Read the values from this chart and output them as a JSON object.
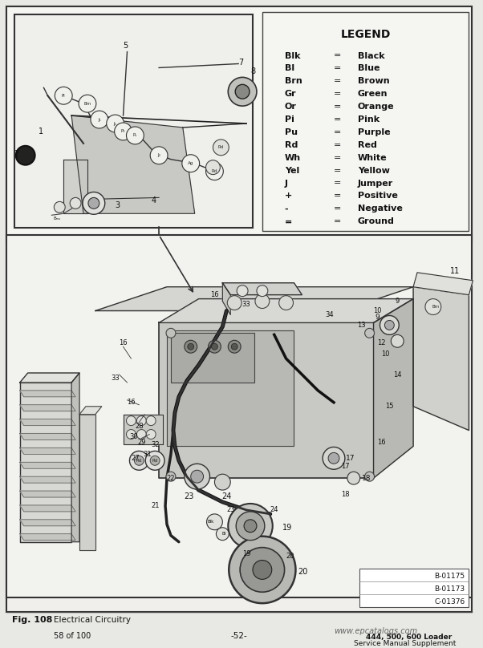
{
  "page_bg": "#e8e8e4",
  "content_bg": "#f0efeb",
  "white": "#ffffff",
  "border_dark": "#222222",
  "border_mid": "#555555",
  "border_light": "#888888",
  "diagram_bg": "#dcdcdc",
  "legend_title": "LEGEND",
  "legend_items": [
    [
      "Blk",
      "=",
      "Black"
    ],
    [
      "Bl",
      "=",
      "Blue"
    ],
    [
      "Brn",
      "=",
      "Brown"
    ],
    [
      "Gr",
      "=",
      "Green"
    ],
    [
      "Or",
      "=",
      "Orange"
    ],
    [
      "Pi",
      "=",
      "Pink"
    ],
    [
      "Pu",
      "=",
      "Purple"
    ],
    [
      "Rd",
      "=",
      "Red"
    ],
    [
      "Wh",
      "=",
      "White"
    ],
    [
      "Yel",
      "=",
      "Yellow"
    ],
    [
      "J",
      "=",
      "Jumper"
    ],
    [
      "+",
      "=",
      "Positive"
    ],
    [
      "-",
      "=",
      "Negative"
    ],
    [
      "=",
      "=",
      "Ground"
    ]
  ],
  "fig_label": "Fig. 108",
  "fig_desc": "Electrical Circuitry",
  "page_num": "58 of 100",
  "center_text": "-52-",
  "watermark": "www.epcatalogs.com",
  "sub_text1": "444, 500, 600 Loader",
  "sub_text2": "Service Manual Supplement",
  "ref_codes": [
    "B-01175",
    "B-01173",
    "C-01376"
  ]
}
